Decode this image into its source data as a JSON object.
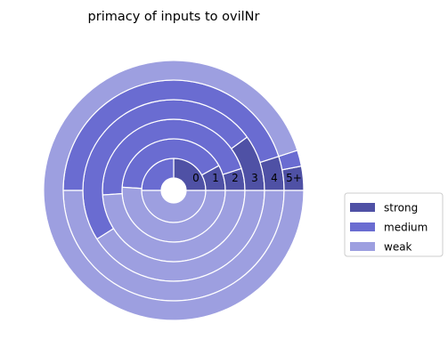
{
  "chart_data": {
    "type": "pie",
    "title": "primacy of inputs to ovilNr",
    "categories": [
      "strong",
      "medium",
      "weak"
    ],
    "colors": {
      "strong": "#4f51a5",
      "medium": "#6a6cd1",
      "weak": "#9d9fe0"
    },
    "rings": [
      {
        "label": "0",
        "values": [
          25,
          25,
          50
        ]
      },
      {
        "label": "1",
        "values": [
          8,
          41,
          51
        ]
      },
      {
        "label": "2",
        "values": [
          5,
          46,
          49
        ]
      },
      {
        "label": "3",
        "values": [
          10,
          49,
          41
        ]
      },
      {
        "label": "4",
        "values": [
          5,
          45,
          50
        ]
      },
      {
        "label": "5+",
        "values": [
          3,
          2,
          95
        ]
      }
    ],
    "legend_position": "right"
  }
}
